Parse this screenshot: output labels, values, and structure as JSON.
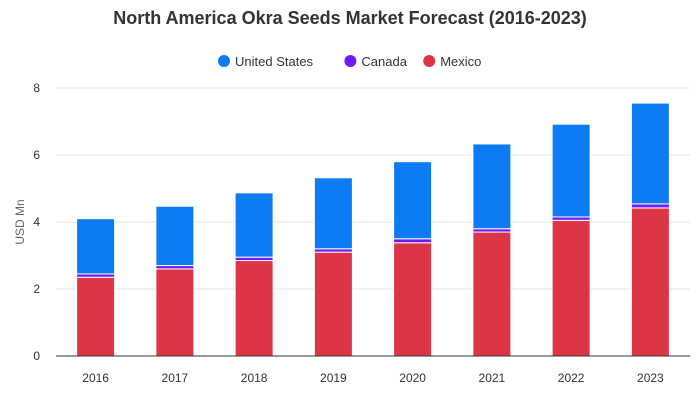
{
  "chart_data": {
    "type": "bar",
    "stacked": true,
    "title": "North America Okra Seeds Market Forecast (2016-2023)",
    "xlabel": "",
    "ylabel": "USD Mn",
    "ylim": [
      0,
      8
    ],
    "yticks": [
      0,
      2,
      4,
      6,
      8
    ],
    "grid": true,
    "legend_position": "top",
    "categories": [
      "2016",
      "2017",
      "2018",
      "2019",
      "2020",
      "2021",
      "2022",
      "2023"
    ],
    "series": [
      {
        "name": "Mexico",
        "color": "#dc3545",
        "values": [
          2.35,
          2.6,
          2.85,
          3.1,
          3.38,
          3.7,
          4.05,
          4.42
        ]
      },
      {
        "name": "Canada",
        "color": "#6f1aff",
        "values": [
          0.1,
          0.1,
          0.1,
          0.1,
          0.12,
          0.1,
          0.1,
          0.12
        ]
      },
      {
        "name": "United States",
        "color": "#0d7cf2",
        "values": [
          1.65,
          1.77,
          1.92,
          2.12,
          2.3,
          2.53,
          2.77,
          3.01
        ]
      }
    ],
    "legend_order": [
      "United States",
      "Canada",
      "Mexico"
    ]
  }
}
